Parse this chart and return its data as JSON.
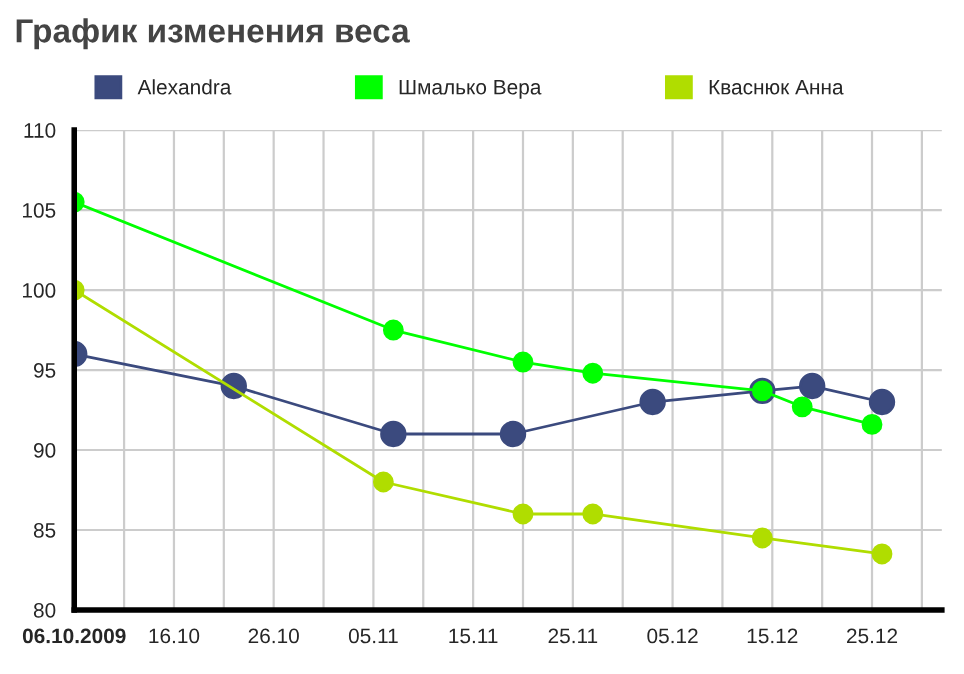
{
  "chart_data": {
    "type": "line",
    "title": "График изменения веса",
    "series": [
      {
        "name": "Alexandra",
        "color": "#3b4a7e",
        "x": [
          "2009-10-06",
          "2009-10-22",
          "2009-11-07",
          "2009-11-19",
          "2009-12-03",
          "2009-12-14",
          "2009-12-19",
          "2009-12-26"
        ],
        "values": [
          96,
          94,
          91,
          91,
          93,
          93.7,
          94,
          93
        ]
      },
      {
        "name": "Шмалько Вера",
        "color": "#00ff00",
        "x": [
          "2009-10-06",
          "2009-11-07",
          "2009-11-20",
          "2009-11-27",
          "2009-12-14",
          "2009-12-18",
          "2009-12-25"
        ],
        "values": [
          105.5,
          97.5,
          95.5,
          94.8,
          93.7,
          92.7,
          91.6
        ]
      },
      {
        "name": "Кваснюк Анна",
        "color": "#b0dd00",
        "x": [
          "2009-10-06",
          "2009-11-06",
          "2009-11-20",
          "2009-11-27",
          "2009-12-14",
          "2009-12-26"
        ],
        "values": [
          100,
          88,
          86,
          86,
          84.5,
          83.5
        ]
      }
    ],
    "xlim": [
      "2009-10-06",
      "2010-01-01"
    ],
    "xticks": [
      {
        "value": "2009-10-06",
        "label": "06.10.2009"
      },
      {
        "value": "2009-10-11",
        "label": null
      },
      {
        "value": "2009-10-16",
        "label": "16.10"
      },
      {
        "value": "2009-10-21",
        "label": null
      },
      {
        "value": "2009-10-26",
        "label": "26.10"
      },
      {
        "value": "2009-10-31",
        "label": null
      },
      {
        "value": "2009-11-05",
        "label": "05.11"
      },
      {
        "value": "2009-11-10",
        "label": null
      },
      {
        "value": "2009-11-15",
        "label": "15.11"
      },
      {
        "value": "2009-11-20",
        "label": null
      },
      {
        "value": "2009-11-25",
        "label": "25.11"
      },
      {
        "value": "2009-11-30",
        "label": null
      },
      {
        "value": "2009-12-05",
        "label": "05.12"
      },
      {
        "value": "2009-12-10",
        "label": null
      },
      {
        "value": "2009-12-15",
        "label": "15.12"
      },
      {
        "value": "2009-12-20",
        "label": null
      },
      {
        "value": "2009-12-25",
        "label": "25.12"
      },
      {
        "value": "2009-12-30",
        "label": null
      }
    ],
    "ylim": [
      80,
      110
    ],
    "yticks": [
      80,
      85,
      90,
      95,
      100,
      105,
      110
    ],
    "grid": true,
    "legend": "top",
    "marker": "circle",
    "line_style": "solid"
  }
}
